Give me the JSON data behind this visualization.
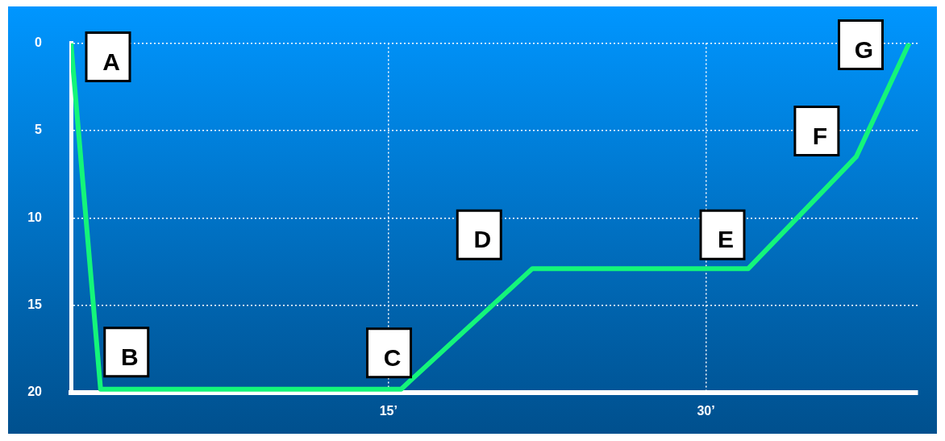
{
  "chart_data": {
    "type": "line",
    "x": [
      0,
      1.4,
      15.6,
      21.8,
      32,
      37.1,
      39.6
    ],
    "series": [
      {
        "color": "#14f57a",
        "values": [
          0,
          19.8,
          19.8,
          12.9,
          12.9,
          6.5,
          0
        ]
      }
    ],
    "xlim": [
      0,
      40
    ],
    "xticks": [
      {
        "value": 15,
        "label": "15’"
      },
      {
        "value": 30,
        "label": "30’"
      }
    ],
    "ylim": [
      20,
      0
    ],
    "yticks": [
      0,
      5,
      10,
      15,
      20
    ],
    "grid": true,
    "legend": false,
    "marker": "none",
    "line_style": "solid",
    "annotations": [
      {
        "text": "A",
        "x": 0,
        "y": 0
      },
      {
        "text": "B",
        "x": 1.4,
        "y": 19.8
      },
      {
        "text": "C",
        "x": 15.6,
        "y": 19.8
      },
      {
        "text": "D",
        "x": 21.8,
        "y": 12.9
      },
      {
        "text": "E",
        "x": 32,
        "y": 12.9
      },
      {
        "text": "F",
        "x": 37.1,
        "y": 6.5
      },
      {
        "text": "G",
        "x": 39.6,
        "y": 0
      }
    ]
  }
}
